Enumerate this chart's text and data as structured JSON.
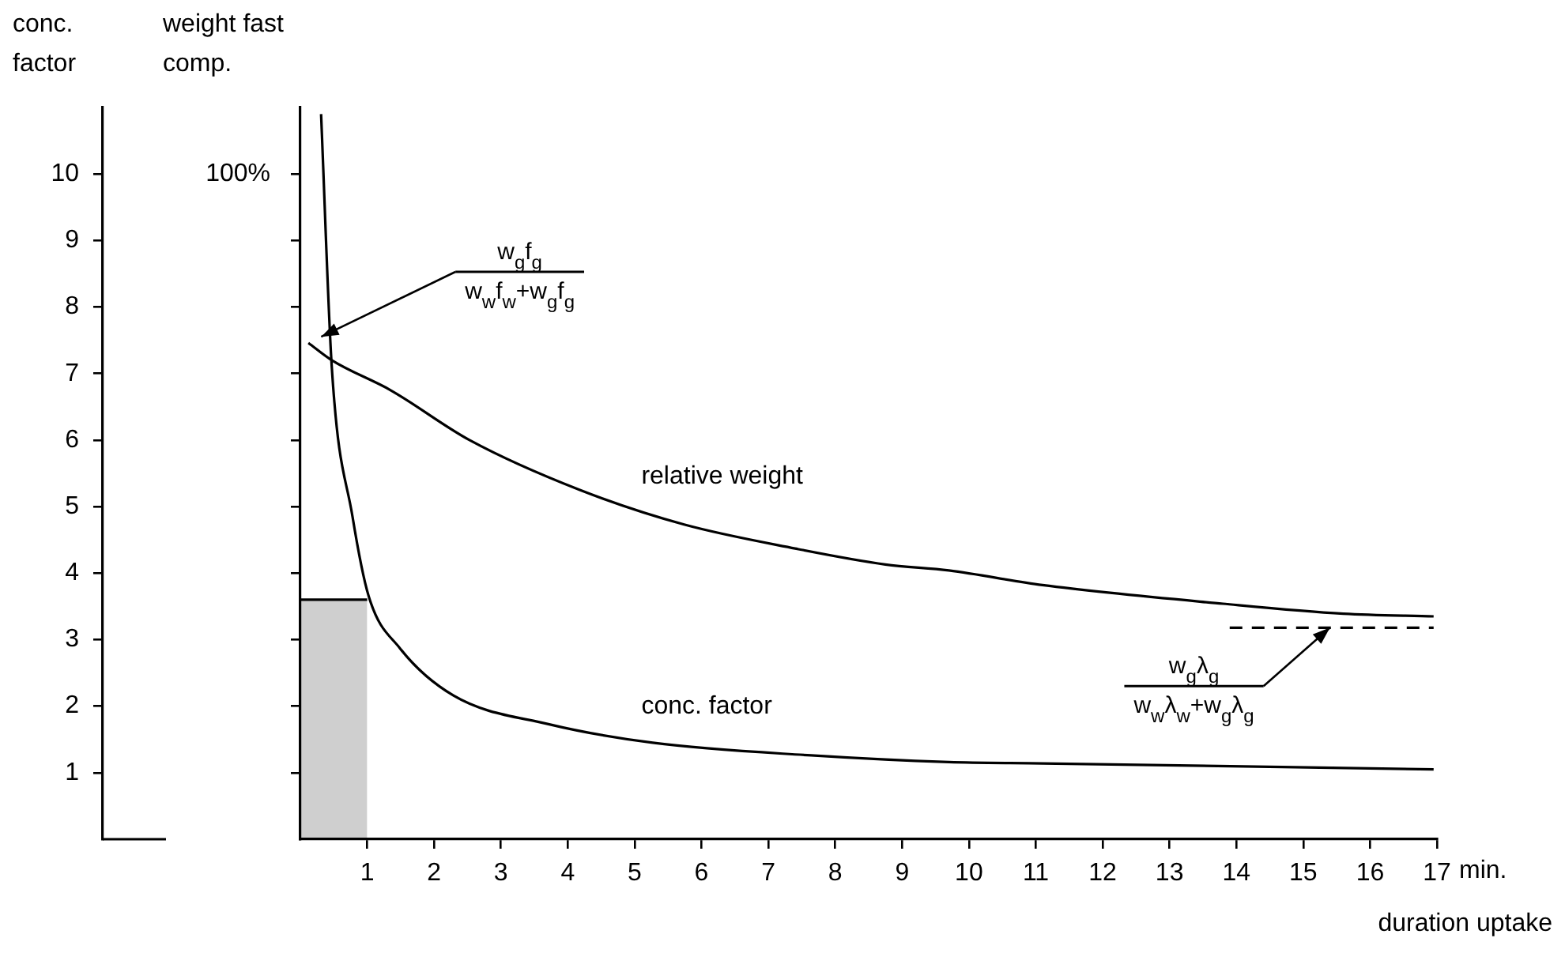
{
  "chart_data": {
    "type": "line",
    "xlabel": "duration uptake",
    "ylabel": "conc. factor",
    "y2label": "weight fast comp.",
    "xlim": [
      0,
      17
    ],
    "xticks": [
      1,
      2,
      3,
      4,
      5,
      6,
      7,
      8,
      9,
      10,
      11,
      12,
      13,
      14,
      15,
      16,
      17
    ],
    "ylim": [
      0,
      11
    ],
    "yticks": [
      1,
      2,
      3,
      4,
      5,
      6,
      7,
      8,
      9,
      10
    ],
    "y2lim": [
      0,
      110
    ],
    "y2ticks": [
      {
        "value": 10,
        "label": null
      },
      {
        "value": 20,
        "label": null
      },
      {
        "value": 30,
        "label": null
      },
      {
        "value": 40,
        "label": null
      },
      {
        "value": 50,
        "label": null
      },
      {
        "value": 60,
        "label": null
      },
      {
        "value": 70,
        "label": null
      },
      {
        "value": 80,
        "label": null
      },
      {
        "value": 90,
        "label": null
      },
      {
        "value": 100,
        "label": "100%"
      }
    ],
    "series": [
      {
        "name": "relative weight",
        "color": "#000000",
        "axis": "y2",
        "x": [
          0.12,
          0.47,
          1.35,
          2.53,
          4.18,
          5.74,
          7.4,
          8.75,
          9.7,
          11.1,
          13.8,
          15.6,
          16.95
        ],
        "values": [
          74.6,
          72,
          67.5,
          60,
          52.5,
          47.3,
          43.7,
          41.3,
          40.4,
          38.2,
          35.4,
          33.9,
          33.5
        ]
      },
      {
        "name": "conc. factor",
        "color": "#000000",
        "axis": "y",
        "x": [
          0.31,
          0.47,
          0.78,
          1.02,
          1.49,
          2.29,
          3.71,
          5.27,
          7.64,
          9.7,
          11.1,
          16.95
        ],
        "values": [
          10.9,
          7.1,
          4.85,
          3.66,
          2.87,
          2.16,
          1.73,
          1.45,
          1.26,
          1.16,
          1.14,
          1.05
        ]
      },
      {
        "type": "line",
        "color": "#000000",
        "axis": "y2",
        "line_style": "dashed",
        "x": [
          13.9,
          16.95
        ],
        "values": [
          31.8,
          31.8
        ]
      },
      {
        "type": "area",
        "color": "#000000",
        "axis": "y",
        "x": [
          0,
          1
        ],
        "values": [
          3.6,
          3.6
        ]
      }
    ],
    "annotations": [
      "w$_{g}$f$_{g}$",
      {
        "text": "w$_{w}$f$_{w}$+w$_{g}$f$_{g}$",
        "x": 0.12,
        "y": 7.46
      },
      "w$_{g}$λ$_{g}$",
      {
        "text": "w$_{w}$λ$_{w}$+w$_{g}$λ$_{g}$",
        "x": 15.4,
        "y": 3.18
      },
      "min."
    ],
    "legend": false,
    "grid": false,
    "marker": "none",
    "line_style": "solid"
  }
}
